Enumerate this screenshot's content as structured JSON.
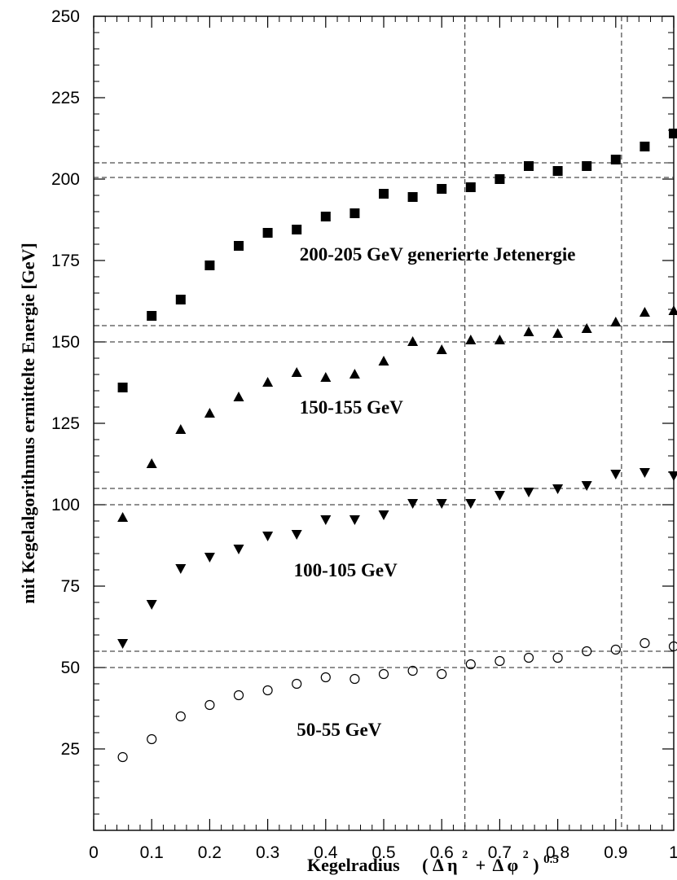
{
  "chart_data": {
    "type": "scatter",
    "title": "",
    "xlabel": "Kegelradius",
    "xlabel_formula": {
      "open": "(",
      "delta1": "Δ",
      "var1": "η",
      "plus": "+",
      "delta2": "Δ",
      "var2": "φ",
      "close": ")",
      "square_exp": "2",
      "outer_exp": "0.5"
    },
    "ylabel": "mit Kegelalgorithmus ermittelte Energie  [GeV]",
    "xlim": [
      0,
      1
    ],
    "ylim": [
      0,
      250
    ],
    "x_ticks": [
      "0",
      "0.1",
      "0.2",
      "0.3",
      "0.4",
      "0.5",
      "0.6",
      "0.7",
      "0.8",
      "0.9",
      "1"
    ],
    "y_ticks": [
      "25",
      "50",
      "75",
      "100",
      "125",
      "150",
      "175",
      "200",
      "225",
      "250"
    ],
    "grid": false,
    "x": [
      0.05,
      0.1,
      0.15,
      0.2,
      0.25,
      0.3,
      0.35,
      0.4,
      0.45,
      0.5,
      0.55,
      0.6,
      0.65,
      0.7,
      0.75,
      0.8,
      0.85,
      0.9,
      0.95,
      1.0
    ],
    "series": [
      {
        "marker": "square",
        "values": [
          136,
          158,
          163,
          173.5,
          179.5,
          183.5,
          184.5,
          188.5,
          189.5,
          195.5,
          194.5,
          197,
          197.5,
          200,
          204,
          202.5,
          204,
          206,
          210,
          214
        ]
      },
      {
        "marker": "triangle-up",
        "values": [
          96,
          112.5,
          123,
          128,
          133,
          137.5,
          140.5,
          139,
          140,
          144,
          150,
          147.5,
          150.5,
          150.5,
          153,
          152.5,
          154,
          156,
          159,
          159.5
        ]
      },
      {
        "marker": "triangle-down",
        "values": [
          57.5,
          69.5,
          80.5,
          84,
          86.5,
          90.5,
          91,
          95.5,
          95.5,
          97,
          100.5,
          100.5,
          100.5,
          103,
          104,
          105,
          106,
          109.5,
          110,
          109
        ]
      },
      {
        "marker": "circle-open",
        "values": [
          22.5,
          28,
          35,
          38.5,
          41.5,
          43,
          45,
          47,
          46.5,
          48,
          49,
          48,
          51,
          52,
          53,
          53,
          55,
          55.5,
          57.5,
          56.5
        ]
      }
    ],
    "h_lines": [
      50,
      55,
      100,
      105,
      150,
      155,
      200.5,
      205
    ],
    "v_lines": [
      0.64,
      0.91
    ],
    "annotations": [
      {
        "text": "200-205 GeV  generierte Jetenergie",
        "x": 0.355,
        "y": 175
      },
      {
        "text": "150-155 GeV",
        "x": 0.355,
        "y": 128
      },
      {
        "text": "100-105 GeV",
        "x": 0.345,
        "y": 78
      },
      {
        "text": "50-55 GeV",
        "x": 0.35,
        "y": 29
      }
    ]
  }
}
